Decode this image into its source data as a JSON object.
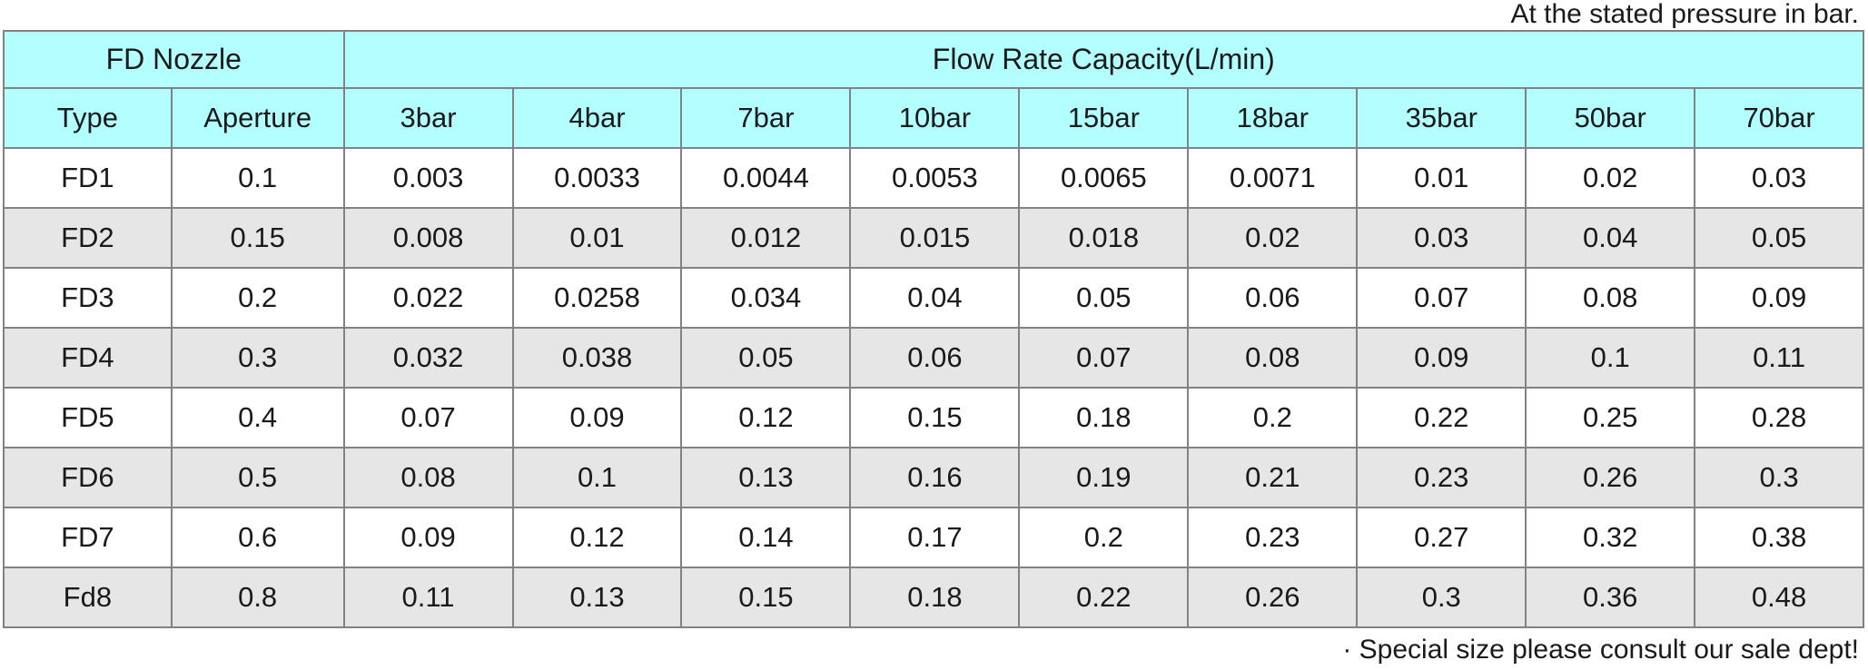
{
  "notes": {
    "top": "At the stated pressure in bar.",
    "bottom": "· Special size please consult our sale dept!"
  },
  "table": {
    "group_headers": {
      "nozzle": "FD Nozzle",
      "flow_rate": "Flow Rate Capacity(L/min)"
    },
    "columns": [
      "Type",
      "Aperture",
      "3bar",
      "4bar",
      "7bar",
      "10bar",
      "15bar",
      "18bar",
      "35bar",
      "50bar",
      "70bar"
    ],
    "rows": [
      {
        "type": "FD1",
        "aperture": "0.1",
        "values": [
          "0.003",
          "0.0033",
          "0.0044",
          "0.0053",
          "0.0065",
          "0.0071",
          "0.01",
          "0.02",
          "0.03"
        ]
      },
      {
        "type": "FD2",
        "aperture": "0.15",
        "values": [
          "0.008",
          "0.01",
          "0.012",
          "0.015",
          "0.018",
          "0.02",
          "0.03",
          "0.04",
          "0.05"
        ]
      },
      {
        "type": "FD3",
        "aperture": "0.2",
        "values": [
          "0.022",
          "0.0258",
          "0.034",
          "0.04",
          "0.05",
          "0.06",
          "0.07",
          "0.08",
          "0.09"
        ]
      },
      {
        "type": "FD4",
        "aperture": "0.3",
        "values": [
          "0.032",
          "0.038",
          "0.05",
          "0.06",
          "0.07",
          "0.08",
          "0.09",
          "0.1",
          "0.11"
        ]
      },
      {
        "type": "FD5",
        "aperture": "0.4",
        "values": [
          "0.07",
          "0.09",
          "0.12",
          "0.15",
          "0.18",
          "0.2",
          "0.22",
          "0.25",
          "0.28"
        ]
      },
      {
        "type": "FD6",
        "aperture": "0.5",
        "values": [
          "0.08",
          "0.1",
          "0.13",
          "0.16",
          "0.19",
          "0.21",
          "0.23",
          "0.26",
          "0.3"
        ]
      },
      {
        "type": "FD7",
        "aperture": "0.6",
        "values": [
          "0.09",
          "0.12",
          "0.14",
          "0.17",
          "0.2",
          "0.23",
          "0.27",
          "0.32",
          "0.38"
        ]
      },
      {
        "type": "Fd8",
        "aperture": "0.8",
        "values": [
          "0.11",
          "0.13",
          "0.15",
          "0.18",
          "0.22",
          "0.26",
          "0.3",
          "0.36",
          "0.48"
        ]
      }
    ]
  },
  "colors": {
    "header_bg": "#b3feff",
    "row_alt_bg": "#e6e6e6",
    "border": "#828282",
    "text": "#1a1a1a"
  }
}
